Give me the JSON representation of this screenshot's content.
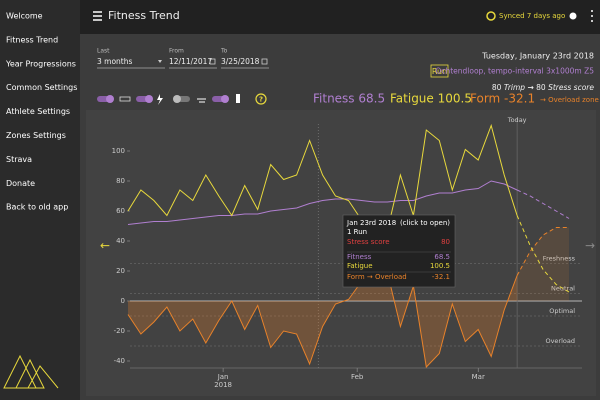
{
  "sidebar": [
    "Welcome",
    "Fitness Trend",
    "Year Progressions",
    "Common Settings",
    "Athlete Settings",
    "Zones Settings",
    "Strava",
    "Donate",
    "Back to old app"
  ],
  "header": {
    "title": "Fitness Trend",
    "sync": "Synced 7 days ago"
  },
  "controls": {
    "last_label": "Last",
    "last_value": "3 months",
    "from_label": "From",
    "from_value": "12/11/2017",
    "to_label": "To",
    "to_value": "3/25/2018"
  },
  "activity": {
    "date": "Tuesday, January 23rd 2018",
    "type": "Run",
    "name": "Ochtendloop, tempo-interval 3x1000m Z5",
    "trimp_value": "80",
    "trimp_label": "Trimp",
    "arrow": "→",
    "stress_value": "80",
    "stress_label": "Stress score"
  },
  "help_icon": "?",
  "metrics": {
    "fitness": "Fitness 68.5",
    "fatigue": "Fatigue 100.5",
    "form": "Form -32.1",
    "zone": "→ Overload zone"
  },
  "tooltip": {
    "date": "Jan 23rd 2018",
    "hint": "(click to open)",
    "count": "1 Run",
    "rows": [
      [
        "Stress score",
        "80"
      ],
      [
        "Fitness",
        "68.5"
      ],
      [
        "Fatigue",
        "100.5"
      ],
      [
        "Form → Overload",
        "-32.1"
      ]
    ]
  },
  "chart_data": {
    "type": "line",
    "x": [
      0,
      3,
      6,
      9,
      12,
      15,
      18,
      21,
      24,
      27,
      30,
      33,
      36,
      39,
      42,
      45,
      48,
      51,
      54,
      57,
      60,
      63,
      66,
      69,
      72,
      75,
      78,
      81,
      84,
      87,
      90,
      93,
      96,
      99,
      102
    ],
    "xlim": [
      -3,
      105
    ],
    "xticks": [
      {
        "value": 22,
        "label": "Jan",
        "sublabel": "2018"
      },
      {
        "value": 53,
        "label": "Feb"
      },
      {
        "value": 81,
        "label": "Mar"
      }
    ],
    "ylim": [
      -45,
      118
    ],
    "yticks": [
      -40,
      -20,
      0,
      20,
      40,
      60,
      80,
      100
    ],
    "today": {
      "value": 90,
      "label": "Today"
    },
    "selected_x": 44,
    "zones": [
      {
        "value": 25,
        "label": "Freshness"
      },
      {
        "value": 5,
        "label": "Neutral"
      },
      {
        "value": -10,
        "label": "Optimal"
      },
      {
        "value": -30,
        "label": "Overload"
      }
    ],
    "series": [
      {
        "color": "#e8822a",
        "dashed": false,
        "fill": true,
        "values": [
          -9,
          -22,
          -14,
          -4,
          -20,
          -12,
          -28,
          -13,
          0,
          -19,
          -3,
          -31,
          -20,
          -22,
          -42,
          -17,
          -2,
          1,
          13,
          25,
          19,
          -17,
          10,
          -44,
          -35,
          -2,
          -27,
          -19,
          -37,
          -6,
          17,
          null,
          null,
          null,
          null
        ]
      },
      {
        "color": "#e8822a",
        "dashed": true,
        "fill": true,
        "values": [
          null,
          null,
          null,
          null,
          null,
          null,
          null,
          null,
          null,
          null,
          null,
          null,
          null,
          null,
          null,
          null,
          null,
          null,
          null,
          null,
          null,
          null,
          null,
          null,
          null,
          null,
          null,
          null,
          null,
          null,
          17,
          33,
          44,
          49,
          49
        ]
      },
      {
        "color": "#b07fd0",
        "dashed": false,
        "fill": false,
        "values": [
          51,
          52,
          53,
          53,
          54,
          55,
          56,
          57,
          57,
          58,
          58,
          60,
          61,
          62,
          65,
          67,
          68,
          68,
          67,
          66,
          66,
          67,
          67,
          70,
          72,
          72,
          74,
          75,
          80,
          78,
          74,
          null,
          null,
          null,
          null
        ]
      },
      {
        "color": "#b07fd0",
        "dashed": true,
        "fill": false,
        "values": [
          null,
          null,
          null,
          null,
          null,
          null,
          null,
          null,
          null,
          null,
          null,
          null,
          null,
          null,
          null,
          null,
          null,
          null,
          null,
          null,
          null,
          null,
          null,
          null,
          null,
          null,
          null,
          null,
          null,
          null,
          74,
          70,
          65,
          60,
          55
        ]
      },
      {
        "color": "#e8d93c",
        "dashed": false,
        "fill": false,
        "values": [
          60,
          74,
          67,
          57,
          74,
          67,
          84,
          70,
          57,
          77,
          61,
          91,
          81,
          84,
          107,
          84,
          70,
          67,
          54,
          41,
          47,
          84,
          57,
          114,
          107,
          74,
          101,
          94,
          117,
          84,
          57,
          null,
          null,
          null,
          null
        ]
      },
      {
        "color": "#e8d93c",
        "dashed": true,
        "fill": false,
        "values": [
          null,
          null,
          null,
          null,
          null,
          null,
          null,
          null,
          null,
          null,
          null,
          null,
          null,
          null,
          null,
          null,
          null,
          null,
          null,
          null,
          null,
          null,
          null,
          null,
          null,
          null,
          null,
          null,
          null,
          null,
          57,
          37,
          21,
          11,
          6
        ]
      }
    ]
  }
}
